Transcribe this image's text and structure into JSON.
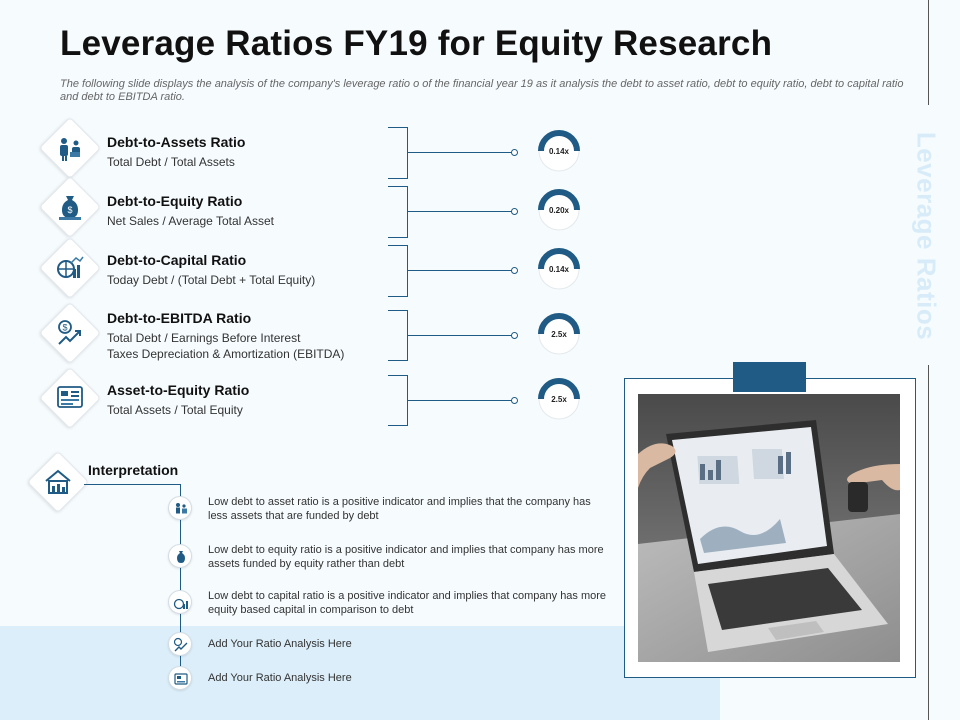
{
  "title": "Leverage Ratios FY19 for Equity Research",
  "subtitle": "The following slide displays the analysis of the company's leverage ratio o of the financial year 19 as it analysis the debt to asset ratio, debt to equity ratio, debt to capital ratio and debt to EBITDA ratio.",
  "side_label": "Leverage Ratios",
  "colors": {
    "accent": "#1f5b84",
    "band": "#dbeef9",
    "side_text": "#d7ecf8"
  },
  "ratios": [
    {
      "name": "Debt-to-Assets Ratio",
      "formula": "Total Debt / Total Assets",
      "value": "0.14x",
      "icon": "business-people-icon"
    },
    {
      "name": "Debt-to-Equity Ratio",
      "formula": "Net Sales / Average Total Asset",
      "value": "0.20x",
      "icon": "money-bag-presenter-icon"
    },
    {
      "name": "Debt-to-Capital Ratio",
      "formula": "Today Debt / (Total Debt + Total Equity)",
      "value": "0.14x",
      "icon": "globe-growth-chart-icon"
    },
    {
      "name": "Debt-to-EBITDA Ratio",
      "formula_line1": "Total Debt / Earnings Before Interest",
      "formula_line2": "Taxes Depreciation & Amortization (EBITDA)",
      "value": "2.5x",
      "icon": "dollar-growth-icon"
    },
    {
      "name": "Asset-to-Equity Ratio",
      "formula": "Total Assets / Total Equity",
      "value": "2.5x",
      "icon": "finance-dashboard-icon"
    }
  ],
  "interpretation": {
    "title": "Interpretation",
    "icon": "house-chart-icon",
    "items": [
      {
        "text": "Low debt to asset ratio is a positive indicator and implies that the company has less assets that are funded by debt",
        "icon": "business-people-icon"
      },
      {
        "text": "Low debt to equity ratio is a positive indicator and implies that company has more assets funded by equity rather than debt",
        "icon": "money-bag-presenter-icon"
      },
      {
        "text": "Low debt to capital ratio is a positive indicator and implies that company has more equity based capital in comparison to debt",
        "icon": "globe-growth-chart-icon"
      },
      {
        "text": "Add Your Ratio Analysis Here",
        "icon": "dollar-growth-icon"
      },
      {
        "text": "Add Your Ratio Analysis Here",
        "icon": "finance-dashboard-icon"
      }
    ]
  },
  "photo": {
    "icon": "laptop-analytics-photo"
  }
}
